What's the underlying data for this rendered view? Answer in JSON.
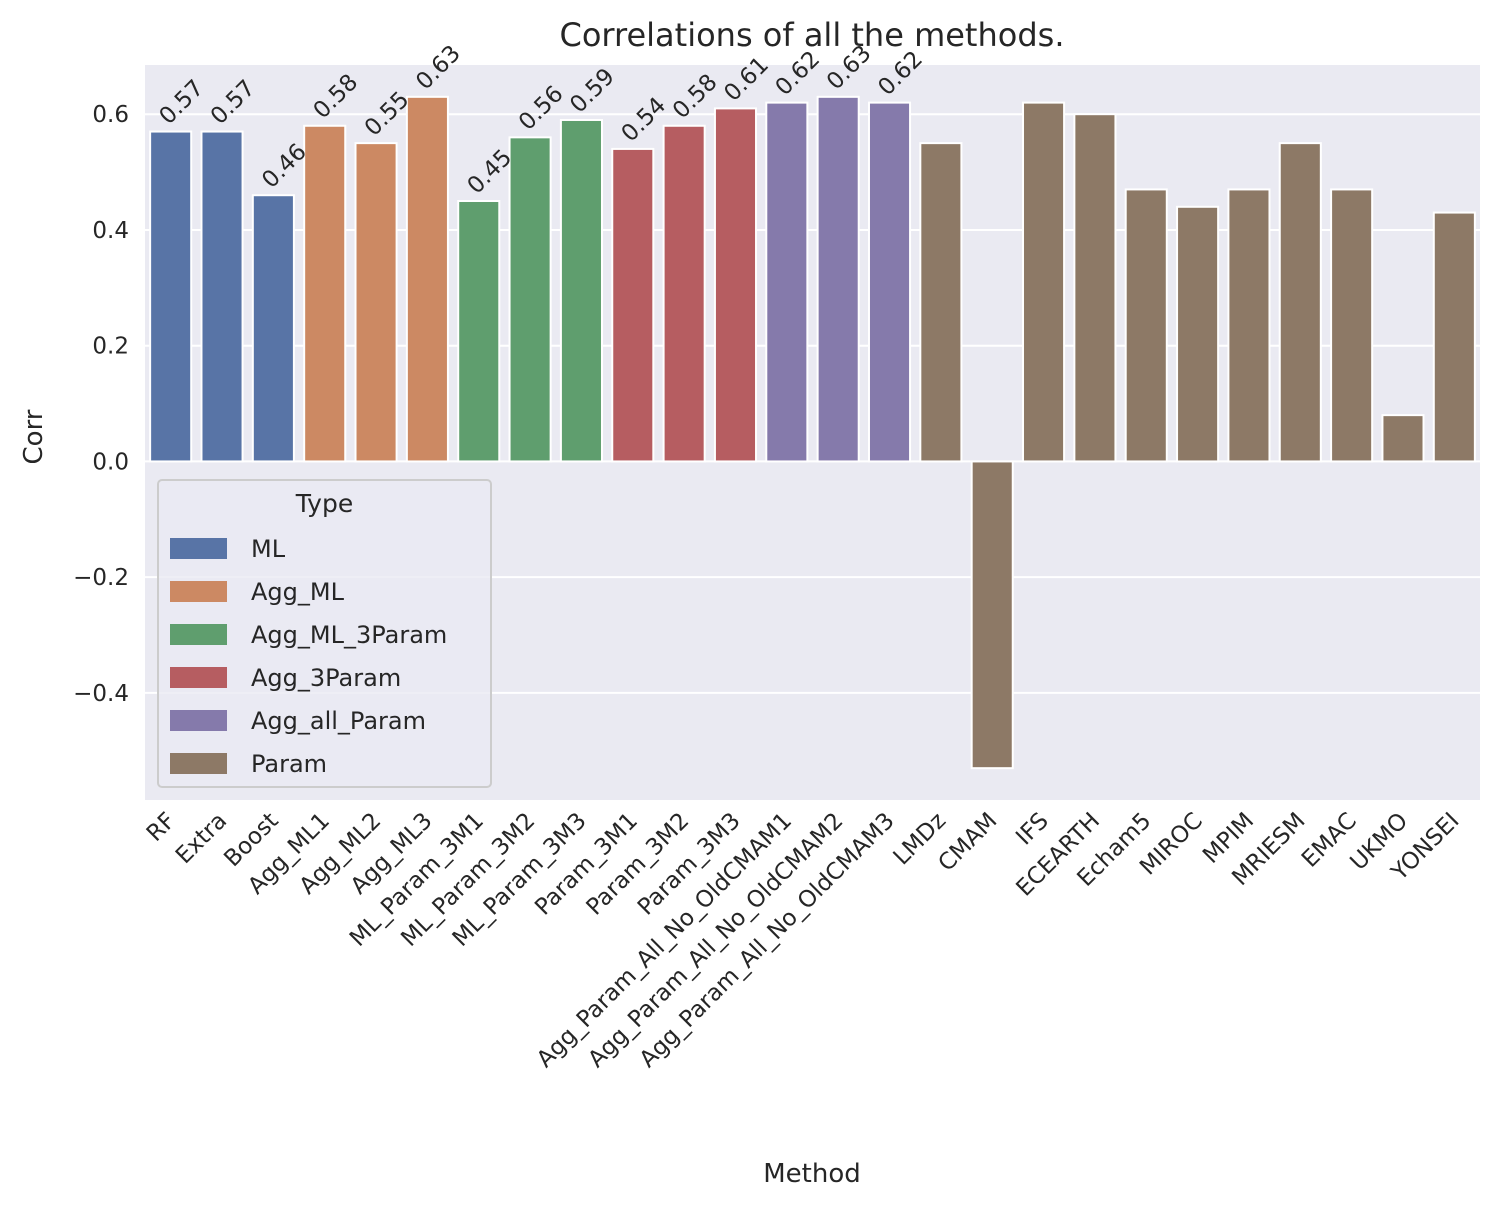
{
  "chart_data": {
    "type": "bar",
    "title": "Correlations of all the methods.",
    "xlabel": "Method",
    "ylabel": "Corr",
    "ylim": [
      -0.585,
      0.685
    ],
    "yticks": [
      {
        "value": 0.6,
        "label": "0.6"
      },
      {
        "value": 0.4,
        "label": "0.4"
      },
      {
        "value": 0.2,
        "label": "0.2"
      },
      {
        "value": 0.0,
        "label": "0.0"
      },
      {
        "value": -0.2,
        "label": "−0.2"
      },
      {
        "value": -0.4,
        "label": "−0.4"
      }
    ],
    "grid": true,
    "legend": {
      "title": "Type",
      "placement": "lower-left",
      "entries": [
        {
          "name": "ML",
          "color": "#5874a6"
        },
        {
          "name": "Agg_ML",
          "color": "#cc8963"
        },
        {
          "name": "Agg_ML_3Param",
          "color": "#5f9e6e"
        },
        {
          "name": "Agg_3Param",
          "color": "#b65d61"
        },
        {
          "name": "Agg_all_Param",
          "color": "#857aab"
        },
        {
          "name": "Param",
          "color": "#8d7966"
        }
      ]
    },
    "bars": [
      {
        "category": "RF",
        "value": 0.57,
        "type": "ML",
        "label": "0.57"
      },
      {
        "category": "Extra",
        "value": 0.57,
        "type": "ML",
        "label": "0.57"
      },
      {
        "category": "Boost",
        "value": 0.46,
        "type": "ML",
        "label": "0.46"
      },
      {
        "category": "Agg_ML1",
        "value": 0.58,
        "type": "Agg_ML",
        "label": "0.58"
      },
      {
        "category": "Agg_ML2",
        "value": 0.55,
        "type": "Agg_ML",
        "label": "0.55"
      },
      {
        "category": "Agg_ML3",
        "value": 0.63,
        "type": "Agg_ML",
        "label": "0.63"
      },
      {
        "category": "ML_Param_3M1",
        "value": 0.45,
        "type": "Agg_ML_3Param",
        "label": "0.45"
      },
      {
        "category": "ML_Param_3M2",
        "value": 0.56,
        "type": "Agg_ML_3Param",
        "label": "0.56"
      },
      {
        "category": "ML_Param_3M3",
        "value": 0.59,
        "type": "Agg_ML_3Param",
        "label": "0.59"
      },
      {
        "category": "Param_3M1",
        "value": 0.54,
        "type": "Agg_3Param",
        "label": "0.54"
      },
      {
        "category": "Param_3M2",
        "value": 0.58,
        "type": "Agg_3Param",
        "label": "0.58"
      },
      {
        "category": "Param_3M3",
        "value": 0.61,
        "type": "Agg_3Param",
        "label": "0.61"
      },
      {
        "category": "Agg_Param_All_No_OldCMAM1",
        "value": 0.62,
        "type": "Agg_all_Param",
        "label": "0.62"
      },
      {
        "category": "Agg_Param_All_No_OldCMAM2",
        "value": 0.63,
        "type": "Agg_all_Param",
        "label": "0.63"
      },
      {
        "category": "Agg_Param_All_No_OldCMAM3",
        "value": 0.62,
        "type": "Agg_all_Param",
        "label": "0.62"
      },
      {
        "category": "LMDz",
        "value": 0.55,
        "type": "Param"
      },
      {
        "category": "CMAM",
        "value": -0.53,
        "type": "Param"
      },
      {
        "category": "IFS",
        "value": 0.62,
        "type": "Param"
      },
      {
        "category": "ECEARTH",
        "value": 0.6,
        "type": "Param"
      },
      {
        "category": "Echam5",
        "value": 0.47,
        "type": "Param"
      },
      {
        "category": "MIROC",
        "value": 0.44,
        "type": "Param"
      },
      {
        "category": "MPIM",
        "value": 0.47,
        "type": "Param"
      },
      {
        "category": "MRIESM",
        "value": 0.55,
        "type": "Param"
      },
      {
        "category": "EMAC",
        "value": 0.47,
        "type": "Param"
      },
      {
        "category": "UKMO",
        "value": 0.08,
        "type": "Param"
      },
      {
        "category": "YONSEI",
        "value": 0.43,
        "type": "Param"
      }
    ]
  }
}
